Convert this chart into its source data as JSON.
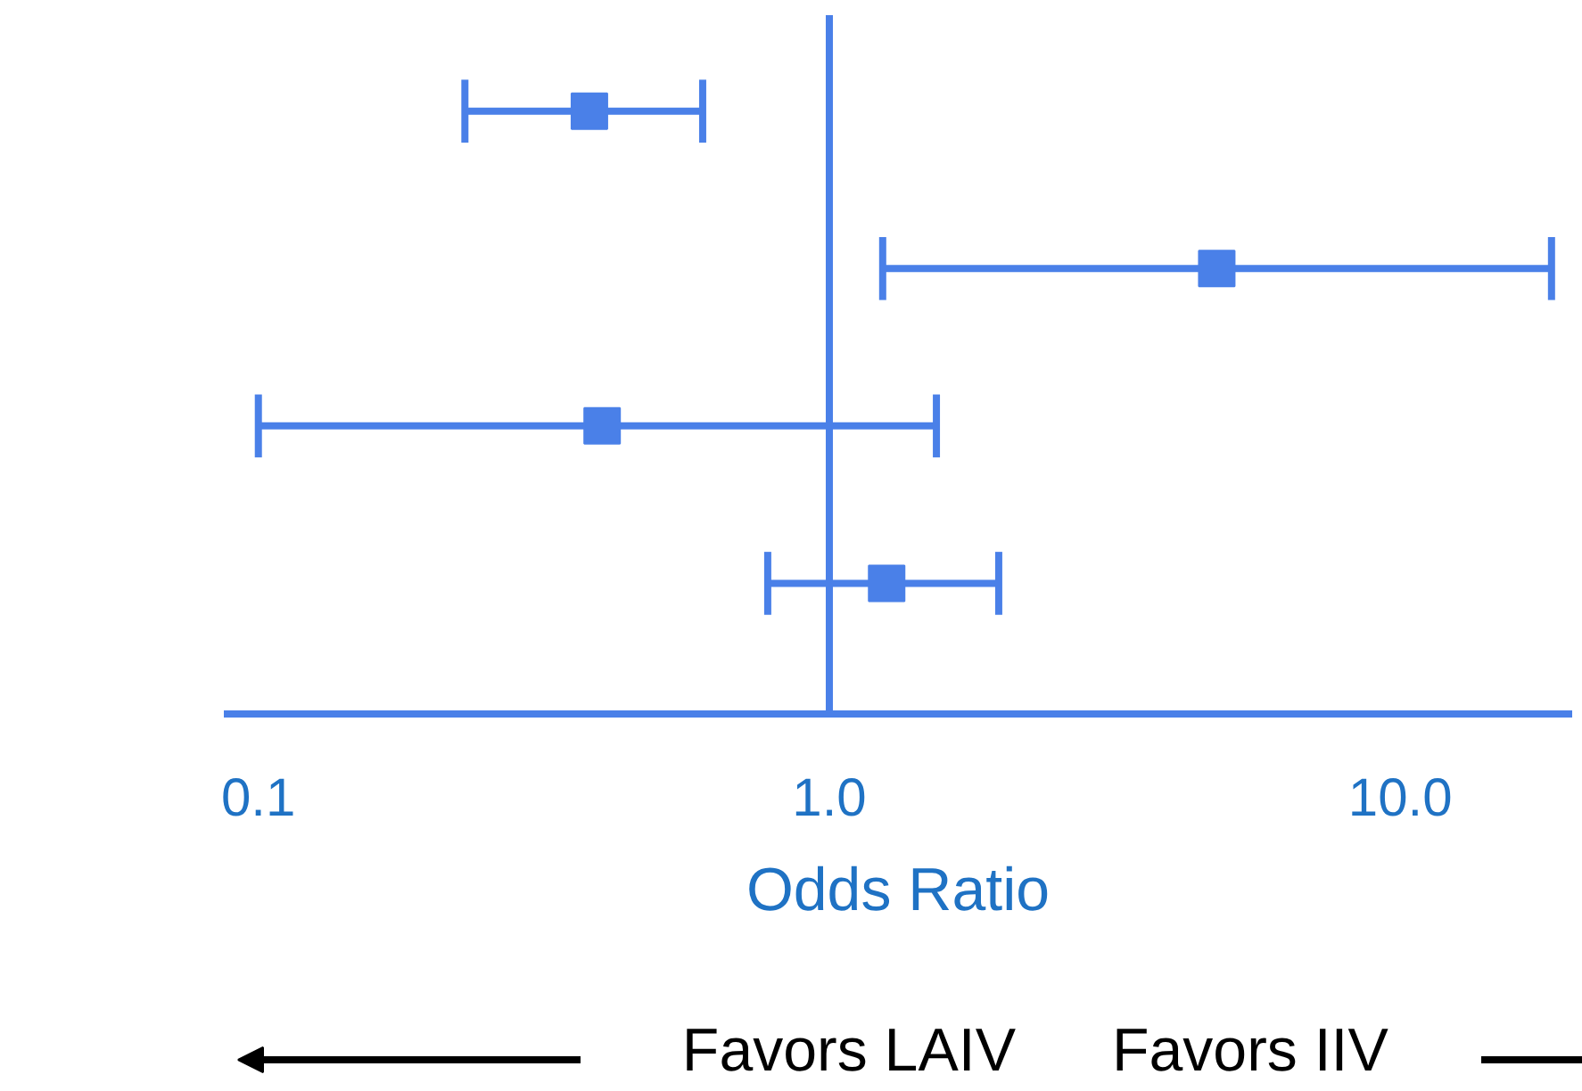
{
  "chart_data": {
    "type": "scatter",
    "orientation": "horizontal",
    "marker": "square",
    "color": "#4a80e8",
    "categories": [
      null,
      null,
      null,
      null
    ],
    "values": [
      0.38,
      4.77,
      0.4,
      1.26
    ],
    "errors": [
      [
        0.23,
        0.6
      ],
      [
        1.24,
        18.4
      ],
      [
        0.1,
        1.54
      ],
      [
        0.78,
        1.98
      ]
    ],
    "log": "x",
    "xlim": [
      0.087,
      20
    ],
    "xticks": [
      0.1,
      {
        "value": 1,
        "label": "1.0"
      },
      {
        "value": 10,
        "label": "10.0"
      }
    ],
    "xlabel": "Odds Ratio",
    "grid": false,
    "ref_lines": [
      {
        "axis": "x",
        "value": 1,
        "label": null
      }
    ],
    "annotations": [
      "Favors LAIV",
      "Favors IIV"
    ]
  }
}
